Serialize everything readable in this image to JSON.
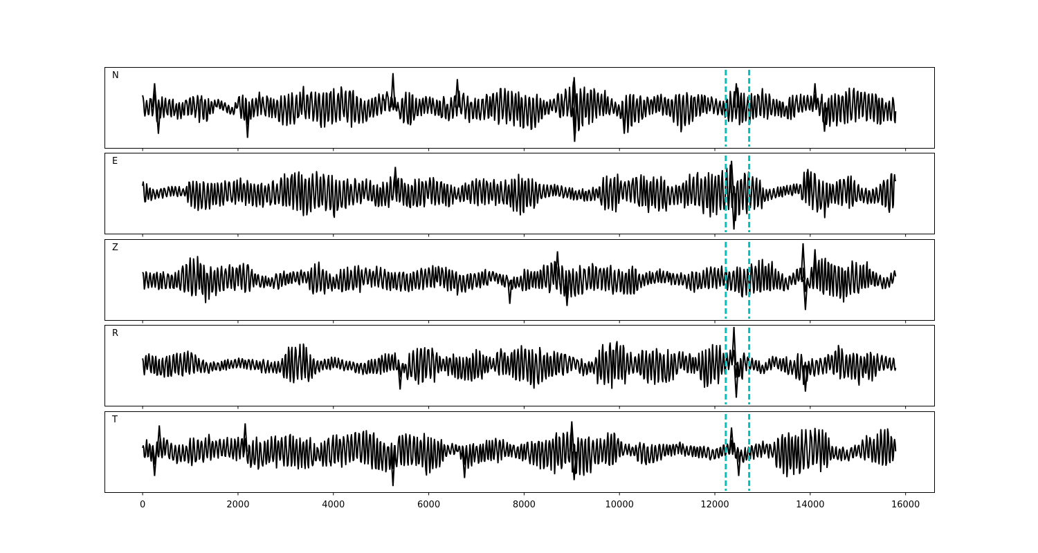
{
  "chart_data": {
    "type": "line",
    "description_note": "",
    "xlim": [
      -800,
      16600
    ],
    "xticks": [
      0,
      2000,
      4000,
      6000,
      8000,
      10000,
      12000,
      14000,
      16000
    ],
    "xtick_labels": [
      "0",
      "2000",
      "4000",
      "6000",
      "8000",
      "10000",
      "12000",
      "14000",
      "16000"
    ],
    "x_range": [
      0,
      15800
    ],
    "vlines": {
      "color": "#00bfbf",
      "style": "dashed",
      "x": [
        12230,
        12720
      ]
    },
    "line_color": "#000000",
    "grid": false,
    "panels": [
      {
        "label": "N",
        "ylim": [
          -1.0,
          1.0
        ],
        "anchors": [
          [
            0,
            0.35
          ],
          [
            100,
            -0.3
          ],
          [
            250,
            0.6
          ],
          [
            330,
            -0.65
          ],
          [
            400,
            0.1
          ],
          [
            800,
            -0.35
          ],
          [
            1000,
            0.35
          ],
          [
            1350,
            -0.45
          ],
          [
            1550,
            0.5
          ],
          [
            1900,
            -0.5
          ],
          [
            2000,
            0.55
          ],
          [
            2200,
            -0.75
          ],
          [
            2400,
            0.45
          ],
          [
            3000,
            -0.4
          ],
          [
            3400,
            0.5
          ],
          [
            3800,
            -0.45
          ],
          [
            4200,
            0.5
          ],
          [
            4600,
            -0.55
          ],
          [
            5000,
            0.45
          ],
          [
            5250,
            0.85
          ],
          [
            5400,
            -0.5
          ],
          [
            6000,
            0.4
          ],
          [
            6400,
            -0.45
          ],
          [
            6600,
            0.7
          ],
          [
            6900,
            -0.45
          ],
          [
            7500,
            0.4
          ],
          [
            8200,
            -0.5
          ],
          [
            8700,
            0.4
          ],
          [
            9050,
            0.75
          ],
          [
            9060,
            -0.85
          ],
          [
            9300,
            0.3
          ],
          [
            9700,
            0.5
          ],
          [
            10100,
            -0.65
          ],
          [
            10800,
            0.5
          ],
          [
            11300,
            -0.4
          ],
          [
            11800,
            0.45
          ],
          [
            12250,
            -0.3
          ],
          [
            12450,
            0.6
          ],
          [
            12650,
            -0.4
          ],
          [
            13000,
            0.45
          ],
          [
            13500,
            -0.4
          ],
          [
            13800,
            0.5
          ],
          [
            14100,
            0.6
          ],
          [
            14300,
            -0.6
          ],
          [
            15000,
            0.45
          ],
          [
            15500,
            -0.45
          ],
          [
            15800,
            -0.25
          ]
        ]
      },
      {
        "label": "E",
        "ylim": [
          -1.0,
          1.0
        ],
        "anchors": [
          [
            0,
            0.2
          ],
          [
            200,
            -0.25
          ],
          [
            600,
            0.3
          ],
          [
            1350,
            -0.35
          ],
          [
            2000,
            0.3
          ],
          [
            2500,
            -0.3
          ],
          [
            3300,
            0.45
          ],
          [
            3450,
            -0.55
          ],
          [
            3650,
            0.5
          ],
          [
            4000,
            -0.45
          ],
          [
            4600,
            0.4
          ],
          [
            5000,
            -0.45
          ],
          [
            5300,
            0.65
          ],
          [
            5600,
            -0.5
          ],
          [
            6000,
            0.4
          ],
          [
            6500,
            -0.3
          ],
          [
            7000,
            0.35
          ],
          [
            8000,
            -0.3
          ],
          [
            8600,
            0.4
          ],
          [
            9200,
            -0.35
          ],
          [
            10100,
            0.35
          ],
          [
            11000,
            -0.3
          ],
          [
            11500,
            0.3
          ],
          [
            12000,
            -0.25
          ],
          [
            12350,
            0.8
          ],
          [
            12400,
            -0.9
          ],
          [
            12600,
            0.3
          ],
          [
            13000,
            -0.35
          ],
          [
            13500,
            0.35
          ],
          [
            13950,
            0.6
          ],
          [
            14300,
            -0.45
          ],
          [
            14800,
            0.35
          ],
          [
            15200,
            -0.4
          ],
          [
            15800,
            0.0
          ]
        ]
      },
      {
        "label": "Z",
        "ylim": [
          -1.0,
          1.0
        ],
        "anchors": [
          [
            0,
            0.0
          ],
          [
            600,
            -0.3
          ],
          [
            1200,
            0.5
          ],
          [
            1300,
            -0.55
          ],
          [
            2000,
            0.55
          ],
          [
            2600,
            -0.4
          ],
          [
            3300,
            0.45
          ],
          [
            4000,
            -0.4
          ],
          [
            4800,
            0.45
          ],
          [
            5500,
            -0.45
          ],
          [
            6200,
            0.5
          ],
          [
            6700,
            -0.5
          ],
          [
            7400,
            0.45
          ],
          [
            7700,
            -0.6
          ],
          [
            8700,
            0.7
          ],
          [
            8900,
            -0.65
          ],
          [
            9500,
            0.45
          ],
          [
            10100,
            -0.45
          ],
          [
            10900,
            0.4
          ],
          [
            11600,
            -0.35
          ],
          [
            12000,
            0.45
          ],
          [
            12500,
            -0.4
          ],
          [
            13000,
            0.5
          ],
          [
            13500,
            -0.55
          ],
          [
            13850,
            0.9
          ],
          [
            13900,
            -0.75
          ],
          [
            14100,
            0.75
          ],
          [
            14700,
            -0.45
          ],
          [
            15200,
            0.45
          ],
          [
            15600,
            -0.55
          ],
          [
            15800,
            0.5
          ]
        ]
      },
      {
        "label": "R",
        "ylim": [
          -1.0,
          1.0
        ],
        "anchors": [
          [
            0,
            -0.15
          ],
          [
            100,
            0.35
          ],
          [
            400,
            -0.3
          ],
          [
            1000,
            0.4
          ],
          [
            1400,
            -0.35
          ],
          [
            2000,
            0.3
          ],
          [
            2800,
            -0.35
          ],
          [
            3400,
            0.35
          ],
          [
            3450,
            -0.5
          ],
          [
            4000,
            0.3
          ],
          [
            4600,
            -0.4
          ],
          [
            5300,
            0.45
          ],
          [
            5400,
            -0.6
          ],
          [
            6000,
            0.35
          ],
          [
            6800,
            -0.35
          ],
          [
            7500,
            0.35
          ],
          [
            8200,
            -0.35
          ],
          [
            9000,
            0.4
          ],
          [
            9300,
            -0.45
          ],
          [
            10000,
            0.3
          ],
          [
            11000,
            -0.3
          ],
          [
            11300,
            0.45
          ],
          [
            11800,
            -0.35
          ],
          [
            12200,
            0.3
          ],
          [
            12400,
            0.95
          ],
          [
            12450,
            -0.8
          ],
          [
            12650,
            0.4
          ],
          [
            13000,
            -0.5
          ],
          [
            13200,
            0.45
          ],
          [
            13900,
            -0.65
          ],
          [
            14500,
            0.5
          ],
          [
            15000,
            -0.45
          ],
          [
            15500,
            0.35
          ],
          [
            15800,
            0.15
          ]
        ]
      },
      {
        "label": "T",
        "ylim": [
          -1.0,
          1.0
        ],
        "anchors": [
          [
            0,
            -0.2
          ],
          [
            100,
            0.3
          ],
          [
            250,
            -0.6
          ],
          [
            350,
            0.65
          ],
          [
            800,
            -0.4
          ],
          [
            1400,
            0.45
          ],
          [
            2000,
            0.4
          ],
          [
            2150,
            0.7
          ],
          [
            2200,
            -0.5
          ],
          [
            3000,
            0.35
          ],
          [
            3500,
            -0.45
          ],
          [
            4500,
            0.55
          ],
          [
            5250,
            -0.85
          ],
          [
            5400,
            0.5
          ],
          [
            6000,
            -0.45
          ],
          [
            6600,
            0.45
          ],
          [
            6750,
            -0.65
          ],
          [
            7500,
            0.35
          ],
          [
            8500,
            -0.45
          ],
          [
            9000,
            0.75
          ],
          [
            9050,
            -0.7
          ],
          [
            10000,
            0.5
          ],
          [
            10600,
            -0.45
          ],
          [
            11200,
            0.45
          ],
          [
            12000,
            -0.35
          ],
          [
            12350,
            0.6
          ],
          [
            12500,
            -0.6
          ],
          [
            13000,
            0.4
          ],
          [
            13500,
            -0.5
          ],
          [
            14100,
            0.55
          ],
          [
            14700,
            -0.45
          ],
          [
            15200,
            0.45
          ],
          [
            15800,
            0.25
          ]
        ]
      }
    ]
  }
}
